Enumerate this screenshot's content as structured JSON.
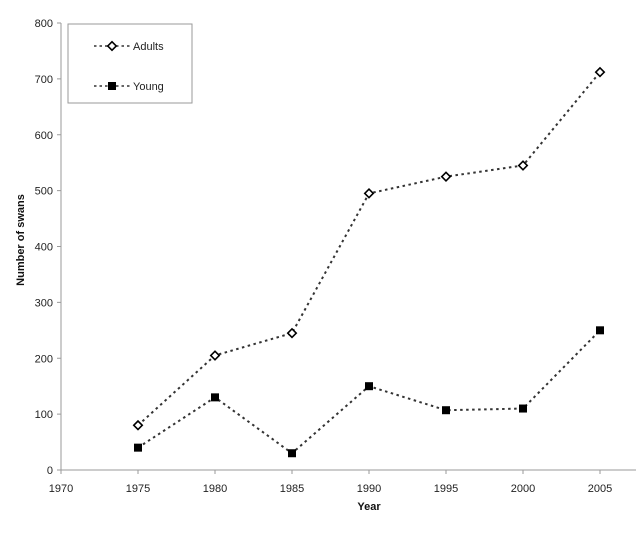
{
  "chart_data": {
    "type": "line",
    "title": "",
    "xlabel": "Year",
    "ylabel": "Number of swans",
    "x": [
      1975,
      1980,
      1985,
      1990,
      1995,
      2000,
      2005
    ],
    "series": [
      {
        "name": "Adults",
        "marker": "open-diamond",
        "line": "dotted",
        "values": [
          80,
          205,
          245,
          495,
          525,
          545,
          712
        ]
      },
      {
        "name": "Young",
        "marker": "filled-square",
        "line": "dotted",
        "values": [
          40,
          130,
          30,
          150,
          107,
          110,
          250
        ]
      }
    ],
    "xlim": [
      1970,
      2010
    ],
    "ylim": [
      0,
      800
    ],
    "x_ticks": [
      "1970",
      "1975",
      "1980",
      "1985",
      "1990",
      "1995",
      "2000",
      "2005"
    ],
    "y_ticks": [
      "0",
      "100",
      "200",
      "300",
      "400",
      "500",
      "600",
      "700",
      "800"
    ],
    "grid": false,
    "legend_position": "top-left, boxed"
  },
  "colors": {
    "axis": "#9a9a9a",
    "series_line": "#333333",
    "marker": "#000000",
    "background": "#ffffff"
  }
}
